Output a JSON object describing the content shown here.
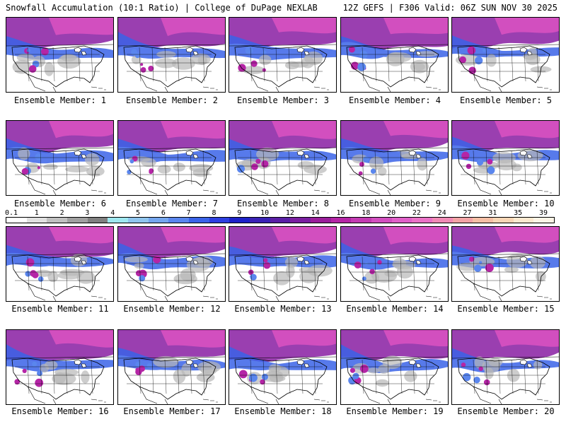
{
  "header": {
    "title_left": "Snowfall Accumulation (10:1 Ratio) | College of DuPage NEXLAB",
    "title_right": "12Z GEFS | F306 Valid: 06Z SUN NOV 30 2025"
  },
  "members": [
    {
      "label": "Ensemble Member: 1"
    },
    {
      "label": "Ensemble Member: 2"
    },
    {
      "label": "Ensemble Member: 3"
    },
    {
      "label": "Ensemble Member: 4"
    },
    {
      "label": "Ensemble Member: 5"
    },
    {
      "label": "Ensemble Member: 6"
    },
    {
      "label": "Ensemble Member: 7"
    },
    {
      "label": "Ensemble Member: 8"
    },
    {
      "label": "Ensemble Member: 9"
    },
    {
      "label": "Ensemble Member: 10"
    },
    {
      "label": "Ensemble Member: 11"
    },
    {
      "label": "Ensemble Member: 12"
    },
    {
      "label": "Ensemble Member: 13"
    },
    {
      "label": "Ensemble Member: 14"
    },
    {
      "label": "Ensemble Member: 15"
    },
    {
      "label": "Ensemble Member: 16"
    },
    {
      "label": "Ensemble Member: 17"
    },
    {
      "label": "Ensemble Member: 18"
    },
    {
      "label": "Ensemble Member: 19"
    },
    {
      "label": "Ensemble Member: 20"
    }
  ],
  "color_scale": {
    "labels": [
      "0.1",
      "1",
      "2",
      "3",
      "4",
      "5",
      "6",
      "7",
      "8",
      "9",
      "10",
      "12",
      "14",
      "16",
      "18",
      "20",
      "22",
      "24",
      "27",
      "31",
      "35",
      "39"
    ],
    "colors": [
      "#ffffff",
      "#e0e0e0",
      "#c0c0c0",
      "#a0a0a0",
      "#808080",
      "#9ee8f0",
      "#8fc5ee",
      "#74a6ee",
      "#5a86ee",
      "#3a63e8",
      "#2d3fe0",
      "#1d22c8",
      "#3a22b5",
      "#5a1fa5",
      "#7a1fa0",
      "#9a1e9a",
      "#b525a6",
      "#c33bb2",
      "#d24fbf",
      "#e060c8",
      "#ea72c6",
      "#f08ab5",
      "#f2a3a5",
      "#f5bfa5",
      "#f8d6b5",
      "#fbe9cf",
      "#fdf4e6"
    ]
  }
}
